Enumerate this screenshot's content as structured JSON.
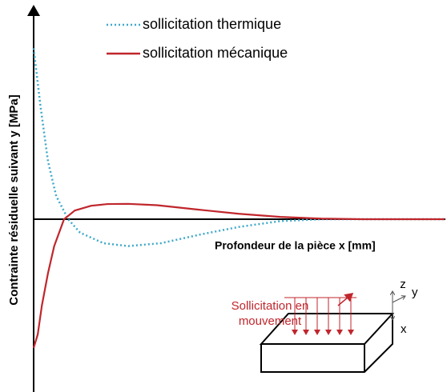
{
  "chart_data": {
    "type": "line",
    "y_label": "Contrainte résiduelle suivant y [MPa]",
    "x_label": "Profondeur de la pièce x [mm]",
    "xlim": [
      0,
      100
    ],
    "ylim": [
      -90,
      110
    ],
    "series": [
      {
        "name": "sollicitation thermique",
        "color": "#3fa9c9",
        "style": "dotted",
        "x": [
          0,
          1.6,
          3.5,
          5.5,
          8.4,
          11.3,
          17,
          23,
          31,
          40.5,
          50,
          60,
          70,
          100
        ],
        "values": [
          89,
          60,
          30,
          12,
          0,
          -7,
          -12.5,
          -14,
          -12.5,
          -8,
          -4,
          -1,
          0,
          0
        ]
      },
      {
        "name": "sollicitation mécanique",
        "color": "#c0262c",
        "style": "solid",
        "x": [
          0,
          1,
          2,
          3.5,
          5,
          7.4,
          10,
          14,
          18,
          23,
          30,
          40,
          50,
          60,
          70,
          80,
          100
        ],
        "values": [
          -67,
          -60,
          -45,
          -28,
          -14,
          0,
          4.5,
          7,
          7.9,
          8,
          7.3,
          5,
          2.8,
          1.2,
          0.3,
          0,
          0
        ]
      }
    ],
    "annotations": [
      "Sollicitation en",
      "mouvement",
      "z",
      "y",
      "x"
    ]
  }
}
